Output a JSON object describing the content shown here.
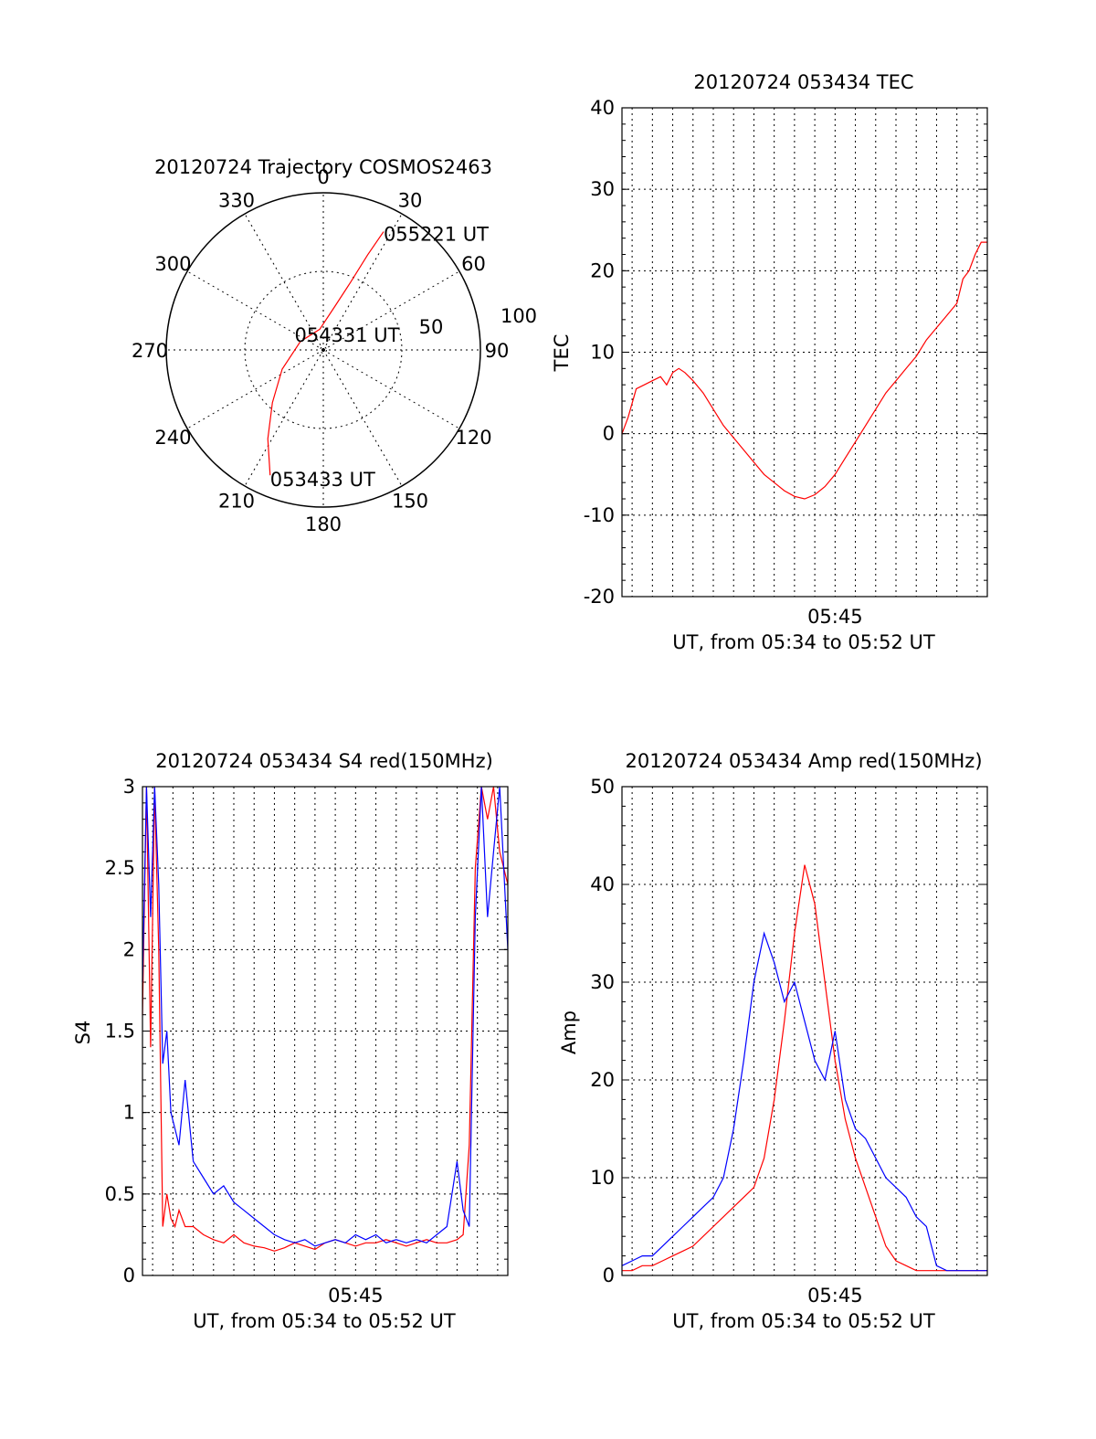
{
  "colors": {
    "red": "#ff0000",
    "blue": "#0000ff",
    "axis": "#000000"
  },
  "chart_data": [
    {
      "id": "polar",
      "type": "polar-trajectory",
      "title": "20120724 Trajectory COSMOS2463",
      "azimuth_labels": [
        "0",
        "30",
        "60",
        "90",
        "120",
        "150",
        "180",
        "210",
        "240",
        "270",
        "300",
        "330"
      ],
      "radial_labels": [
        "50",
        "100"
      ],
      "series": [
        {
          "color": "red",
          "points": [
            {
              "az": 203,
              "el": 12
            },
            {
              "az": 212,
              "el": 30
            },
            {
              "az": 224,
              "el": 48
            },
            {
              "az": 245,
              "el": 64
            },
            {
              "az": 290,
              "el": 76
            },
            {
              "az": 350,
              "el": 78
            },
            {
              "az": 15,
              "el": 64
            },
            {
              "az": 22,
              "el": 48
            },
            {
              "az": 25,
              "el": 30
            },
            {
              "az": 27,
              "el": 14
            }
          ]
        }
      ],
      "annotations": {
        "start": {
          "text": "053433 UT",
          "az": 203,
          "el": 12
        },
        "mid": {
          "text": "054331 UT"
        },
        "end": {
          "text": "055221 UT",
          "az": 27,
          "el": 14
        }
      }
    },
    {
      "id": "tec",
      "type": "line",
      "title": "20120724 053434 TEC",
      "ylabel": "TEC",
      "xlabel": "UT, from 05:34 to 05:52 UT",
      "xtick_label": "05:45",
      "xtick_value_min": 11.0,
      "yticks": [
        -20,
        -10,
        0,
        10,
        20,
        30,
        40
      ],
      "ylim": [
        -20,
        40
      ],
      "xlim_min": [
        0.5,
        18.5
      ],
      "grid": true,
      "series": [
        {
          "color": "red",
          "x": [
            0.5,
            0.8,
            1.2,
            1.6,
            2.0,
            2.4,
            2.7,
            3.0,
            3.3,
            3.6,
            4.0,
            4.5,
            5.0,
            5.5,
            6.0,
            6.5,
            7.0,
            7.5,
            8.0,
            8.5,
            9.0,
            9.5,
            10.0,
            10.5,
            11.0,
            11.5,
            12.0,
            12.5,
            13.0,
            13.5,
            14.0,
            14.5,
            15.0,
            15.5,
            16.0,
            16.5,
            17.0,
            17.3,
            17.6,
            17.9,
            18.2,
            18.5
          ],
          "y": [
            0,
            2,
            5.5,
            6,
            6.5,
            7,
            6,
            7.5,
            8,
            7.5,
            6.5,
            5,
            3,
            1,
            -0.5,
            -2,
            -3.5,
            -5,
            -6,
            -7,
            -7.7,
            -8,
            -7.5,
            -6.5,
            -5,
            -3,
            -1,
            1,
            3,
            5,
            6.5,
            8,
            9.5,
            11.5,
            13,
            14.5,
            16,
            19,
            20,
            22,
            23.5,
            23.5
          ]
        }
      ]
    },
    {
      "id": "s4",
      "type": "line",
      "title": "20120724 053434 S4 red(150MHz)",
      "ylabel": "S4",
      "xlabel": "UT, from 05:34 to 05:52 UT",
      "xtick_label": "05:45",
      "xtick_value_min": 11.0,
      "yticks": [
        0,
        0.5,
        1,
        1.5,
        2,
        2.5,
        3
      ],
      "ytick_labels": [
        "0",
        "0.5",
        "1",
        "1.5",
        "2",
        "2.5",
        "3"
      ],
      "ylim": [
        0,
        3
      ],
      "xlim_min": [
        0.5,
        18.5
      ],
      "grid": true,
      "series": [
        {
          "color": "red",
          "x": [
            0.5,
            0.7,
            0.9,
            1.1,
            1.3,
            1.5,
            1.7,
            1.9,
            2.1,
            2.3,
            2.6,
            3.0,
            3.5,
            4.0,
            4.5,
            5.0,
            5.5,
            6.0,
            6.5,
            7.0,
            7.5,
            8.0,
            8.5,
            9.0,
            9.5,
            10.0,
            10.5,
            11.0,
            11.5,
            12.0,
            12.5,
            13.0,
            13.5,
            14.0,
            14.5,
            15.0,
            15.5,
            16.0,
            16.3,
            16.6,
            16.9,
            17.2,
            17.5,
            17.8,
            18.1,
            18.5
          ],
          "y": [
            1.6,
            3,
            1.4,
            3,
            2.0,
            0.3,
            0.5,
            0.35,
            0.3,
            0.4,
            0.3,
            0.3,
            0.25,
            0.22,
            0.2,
            0.25,
            0.2,
            0.18,
            0.17,
            0.15,
            0.17,
            0.2,
            0.18,
            0.16,
            0.2,
            0.22,
            0.2,
            0.18,
            0.2,
            0.2,
            0.22,
            0.2,
            0.18,
            0.2,
            0.22,
            0.2,
            0.2,
            0.22,
            0.25,
            0.8,
            2.5,
            3,
            2.8,
            3,
            2.6,
            2.4
          ]
        },
        {
          "color": "blue",
          "x": [
            0.5,
            0.7,
            0.9,
            1.1,
            1.3,
            1.5,
            1.7,
            1.9,
            2.1,
            2.3,
            2.6,
            3.0,
            3.5,
            4.0,
            4.5,
            5.0,
            5.5,
            6.0,
            6.5,
            7.0,
            7.5,
            8.0,
            8.5,
            9.0,
            9.5,
            10.0,
            10.5,
            11.0,
            11.5,
            12.0,
            12.5,
            13.0,
            13.5,
            14.0,
            14.5,
            15.0,
            15.5,
            16.0,
            16.3,
            16.6,
            16.9,
            17.2,
            17.5,
            17.8,
            18.1,
            18.5
          ],
          "y": [
            1.8,
            3,
            2.2,
            3,
            2.4,
            1.3,
            1.5,
            1.0,
            0.9,
            0.8,
            1.2,
            0.7,
            0.6,
            0.5,
            0.55,
            0.45,
            0.4,
            0.35,
            0.3,
            0.25,
            0.22,
            0.2,
            0.22,
            0.18,
            0.2,
            0.22,
            0.2,
            0.25,
            0.22,
            0.25,
            0.2,
            0.22,
            0.2,
            0.22,
            0.2,
            0.25,
            0.3,
            0.7,
            0.4,
            0.3,
            2.2,
            3,
            2.2,
            2.6,
            3,
            2.0
          ]
        }
      ]
    },
    {
      "id": "amp",
      "type": "line",
      "title": "20120724 053434 Amp red(150MHz)",
      "ylabel": "Amp",
      "xlabel": "UT, from 05:34 to 05:52 UT",
      "xtick_label": "05:45",
      "xtick_value_min": 11.0,
      "yticks": [
        0,
        10,
        20,
        30,
        40,
        50
      ],
      "ylim": [
        0,
        50
      ],
      "xlim_min": [
        0.5,
        18.5
      ],
      "grid": true,
      "series": [
        {
          "color": "red",
          "x": [
            0.5,
            1.0,
            1.5,
            2.0,
            2.5,
            3.0,
            3.5,
            4.0,
            4.5,
            5.0,
            5.5,
            6.0,
            6.5,
            7.0,
            7.5,
            8.0,
            8.5,
            9.0,
            9.5,
            10.0,
            10.5,
            11.0,
            11.5,
            12.0,
            12.5,
            13.0,
            13.5,
            14.0,
            14.5,
            15.0,
            15.5,
            16.0,
            16.5,
            17.0,
            17.5,
            18.0,
            18.5
          ],
          "y": [
            0.5,
            0.5,
            1,
            1,
            1.5,
            2,
            2.5,
            3,
            4,
            5,
            6,
            7,
            8,
            9,
            12,
            18,
            26,
            35,
            42,
            38,
            30,
            22,
            16,
            12,
            9,
            6,
            3,
            1.5,
            1,
            0.5,
            0.5,
            0.5,
            0.5,
            0.5,
            0.5,
            0.5,
            0.5
          ]
        },
        {
          "color": "blue",
          "x": [
            0.5,
            1.0,
            1.5,
            2.0,
            2.5,
            3.0,
            3.5,
            4.0,
            4.5,
            5.0,
            5.5,
            6.0,
            6.5,
            7.0,
            7.5,
            8.0,
            8.5,
            9.0,
            9.5,
            10.0,
            10.5,
            11.0,
            11.5,
            12.0,
            12.5,
            13.0,
            13.5,
            14.0,
            14.5,
            15.0,
            15.5,
            16.0,
            16.5,
            17.0,
            17.5,
            18.0,
            18.5
          ],
          "y": [
            1,
            1.5,
            2,
            2,
            3,
            4,
            5,
            6,
            7,
            8,
            10,
            15,
            22,
            30,
            35,
            32,
            28,
            30,
            26,
            22,
            20,
            25,
            18,
            15,
            14,
            12,
            10,
            9,
            8,
            6,
            5,
            1,
            0.5,
            0.5,
            0.5,
            0.5,
            0.5
          ]
        }
      ]
    }
  ]
}
